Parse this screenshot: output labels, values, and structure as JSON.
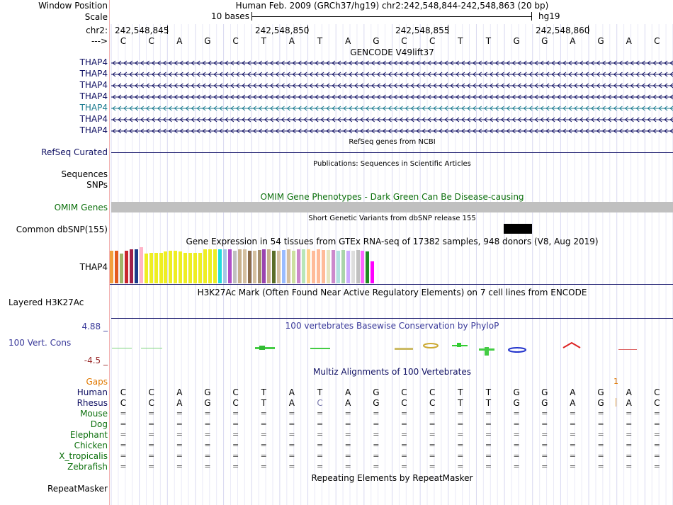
{
  "header": {
    "position_label": "Window Position",
    "position_text": "Human Feb. 2009 (GRCh37/hg19)   chr2:242,548,844-242,548,863 (20 bp)",
    "scale_label": "Scale",
    "scale_text": "10 bases",
    "assembly": "hg19",
    "chrom_label": "chr2:",
    "strand_label": "--->",
    "coords": [
      "242,548,845",
      "242,548,850",
      "242,548,855",
      "242,548,860"
    ],
    "bases": [
      "C",
      "C",
      "A",
      "G",
      "C",
      "T",
      "A",
      "T",
      "A",
      "G",
      "C",
      "C",
      "T",
      "T",
      "G",
      "G",
      "A",
      "G",
      "A",
      "C"
    ]
  },
  "gencode": {
    "title": "GENCODE V49lift37",
    "genes": [
      "THAP4",
      "THAP4",
      "THAP4",
      "THAP4",
      "THAP4",
      "THAP4",
      "THAP4"
    ],
    "colors": [
      "#101063",
      "#101063",
      "#101063",
      "#101063",
      "#1b7b8f",
      "#101063",
      "#101063"
    ]
  },
  "refseq": {
    "label": "RefSeq Curated",
    "title": "RefSeq genes from NCBI"
  },
  "publications": {
    "label": "Sequences",
    "title": "Publications: Sequences in Scientific Articles"
  },
  "snps_label": "SNPs",
  "omim": {
    "title": "OMIM Gene Phenotypes - Dark Green Can Be Disease-causing",
    "label": "OMIM Genes"
  },
  "dbsnp": {
    "title": "Short Genetic Variants from dbSNP release 155",
    "label": "Common dbSNP(155)"
  },
  "gtex": {
    "title": "Gene Expression in 54 tissues from GTEx RNA-seq of 17382 samples, 948 donors (V8, Aug 2019)",
    "label": "THAP4",
    "chart_data": {
      "type": "bar",
      "title": "Gene Expression in 54 tissues from GTEx RNA-seq of 17382 samples, 948 donors (V8, Aug 2019)",
      "values": [
        0.9,
        0.9,
        0.82,
        0.9,
        0.95,
        0.95,
        1.0,
        0.82,
        0.85,
        0.85,
        0.85,
        0.88,
        0.9,
        0.9,
        0.88,
        0.85,
        0.85,
        0.85,
        0.85,
        0.95,
        0.95,
        0.95,
        0.95,
        0.95,
        0.95,
        0.9,
        0.95,
        0.95,
        0.9,
        0.9,
        0.92,
        0.95,
        0.95,
        0.9,
        0.9,
        0.92,
        0.95,
        0.9,
        0.95,
        0.95,
        0.95,
        0.9,
        0.95,
        0.92,
        0.92,
        0.92,
        0.9,
        0.92,
        0.9,
        0.9,
        0.92,
        0.9,
        0.88,
        0.6
      ],
      "colors": [
        "#f2a03c",
        "#e35a1e",
        "#a0b56a",
        "#c8262e",
        "#9e1e4a",
        "#1b3a8a",
        "#ffb4c8",
        "#eeee22",
        "#eeee22",
        "#eeee22",
        "#eeee22",
        "#eeee22",
        "#eeee22",
        "#eeee22",
        "#eeee22",
        "#eeee22",
        "#eeee22",
        "#eeee22",
        "#eeee22",
        "#eeee22",
        "#eeee22",
        "#eeee22",
        "#22dcdc",
        "#a8c6e6",
        "#b04ec8",
        "#c0c0c0",
        "#c8b08c",
        "#d4bfa0",
        "#8b6b4a",
        "#d4bfa0",
        "#a58e6c",
        "#9a44b0",
        "#c8b08c",
        "#5a6e28",
        "#d4bfa0",
        "#99bbff",
        "#d4bfa0",
        "#cce0a0",
        "#cc88cc",
        "#b8e6b8",
        "#ffd18c",
        "#ffbb99",
        "#ffbb99",
        "#ffbb99",
        "#e6e6c0",
        "#cc88cc",
        "#b0e0e0",
        "#aad4aa",
        "#ccaaff",
        "#dddddd",
        "#c0c0c0",
        "#ff66ff",
        "#228b22",
        "#ff00ff"
      ]
    }
  },
  "h3k27ac": {
    "title": "H3K27Ac Mark (Often Found Near Active Regulatory Elements) on 7 cell lines from ENCODE",
    "label": "Layered H3K27Ac"
  },
  "conservation": {
    "title": "100 vertebrates Basewise Conservation by PhyloP",
    "label": "100 Vert. Cons",
    "max": "4.88 _",
    "min": "-4.5 _"
  },
  "multiz": {
    "title": "Multiz Alignments of 100 Vertebrates",
    "gaps_label": "Gaps",
    "gap_marker": "1",
    "species": [
      "Human",
      "Rhesus",
      "Mouse",
      "Dog",
      "Elephant",
      "Chicken",
      "X_tropicalis",
      "Zebrafish"
    ],
    "human_bases": [
      "C",
      "C",
      "A",
      "G",
      "C",
      "T",
      "A",
      "T",
      "A",
      "G",
      "C",
      "C",
      "T",
      "T",
      "G",
      "G",
      "A",
      "G",
      "A",
      "C"
    ],
    "rhesus_bases": [
      "C",
      "C",
      "A",
      "G",
      "C",
      "T",
      "A",
      "C",
      "A",
      "G",
      "C",
      "C",
      "T",
      "T",
      "G",
      "G",
      "A",
      "G",
      "A",
      "C"
    ],
    "equal_symbol": "="
  },
  "repeatmasker": {
    "label": "RepeatMasker",
    "title": "Repeating Elements by RepeatMasker"
  },
  "theme": {
    "navy": "#101063",
    "green": "#0b6f0b",
    "gaps": "#e07800",
    "cons_blue": "#3a3a9a",
    "cons_red": "#9a2a2a",
    "omim_gray": "#c0c0c0"
  }
}
